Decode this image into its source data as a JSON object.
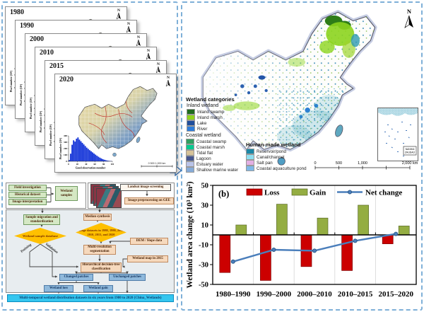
{
  "stacked_maps": {
    "years": [
      "1980",
      "1990",
      "2000",
      "2010",
      "2015",
      "2020"
    ],
    "compass": "N",
    "scale_label": "0    500   1,000 km",
    "histogram": {
      "ylabel": "Pixel number (10⁶)",
      "xlabel": "Good observation number",
      "yticks": [
        0,
        100,
        200,
        300,
        400
      ],
      "xticks": [
        0,
        20,
        40,
        60,
        80,
        100
      ],
      "values": [
        20,
        120,
        260,
        330,
        310,
        355,
        375,
        340,
        315,
        290,
        265,
        240,
        215,
        195,
        175,
        158,
        140,
        122,
        105,
        88,
        72,
        58,
        45,
        34,
        25,
        18,
        12,
        8,
        5,
        3
      ]
    }
  },
  "flowchart": {
    "inputs": [
      "Field investigation",
      "Historical dataset",
      "Image interpretation"
    ],
    "wetland_samples": "Wetland samples",
    "landsat_screening": "Landsat image screening",
    "gee": "Image preprocessing on GEE",
    "sample_migration": "Sample migration and standardization",
    "sample_db": "Wetland sample database",
    "training": "Training",
    "validation": "Validation",
    "median_synthesis": "Median synthesis",
    "image_datasets": "Image datasets in 1980, 1990, 2000, 2010, 2015, and 2020",
    "dem_slope": "DEM / Slope data",
    "segmentation": "Multi-resolution segmentation",
    "wetland_map_2015": "Wetland map in 2015",
    "classification": "Hierarchical decision-tree classification",
    "changed": "Changed patches",
    "unchanged": "Unchanged patches",
    "loss": "Wetland loss",
    "gain": "Wetland gain",
    "banner": "Multi-temporal wetland distribution datasets in six years from 1980 to 2020 (China_Wetlands)"
  },
  "map_panel": {
    "legend_title": "Wetland categories",
    "groups": [
      {
        "title": "Inland wetland",
        "items": [
          {
            "label": "Inland swamp",
            "color": "#1e6b1e"
          },
          {
            "label": "Inland marsh",
            "color": "#8fd41c"
          },
          {
            "label": "Lake",
            "color": "#1f4e9c"
          },
          {
            "label": "River",
            "color": "#2e7ddb"
          }
        ]
      },
      {
        "title": "Coastal wetland",
        "items": [
          {
            "label": "Coastal swamp",
            "color": "#2f9e60"
          },
          {
            "label": "Coastal marsh",
            "color": "#06c98f"
          },
          {
            "label": "Tidal flat",
            "color": "#d6c298"
          },
          {
            "label": "Lagoon",
            "color": "#46568f"
          },
          {
            "label": "Estuary water",
            "color": "#b9c3e8"
          },
          {
            "label": "Shallow marine water",
            "color": "#86abd8"
          }
        ]
      },
      {
        "title": "Human-made wetland",
        "items": [
          {
            "label": "Reservoir/pond",
            "color": "#1b87a6"
          },
          {
            "label": "Canal/channel",
            "color": "#8edff0"
          },
          {
            "label": "Salt pan",
            "color": "#e3afe3"
          },
          {
            "label": "Coastal aquaculture pond",
            "color": "#7db8e8"
          }
        ]
      }
    ],
    "scale_ticks": [
      "0",
      "500",
      "1,000",
      "2,000 km"
    ],
    "compass": "N",
    "inset_label": "NANHAI ZHUDAO"
  },
  "chart_data": {
    "type": "bar",
    "panel_label": "(b)",
    "categories": [
      "1980–1990",
      "1990–2000",
      "2000–2010",
      "2010–2015",
      "2015–2020"
    ],
    "series": [
      {
        "name": "Loss",
        "type": "bar",
        "color": "#cc0000",
        "values": [
          -38,
          -46,
          -32,
          -36,
          -9
        ]
      },
      {
        "name": "Gain",
        "type": "bar",
        "color": "#94ad42",
        "values": [
          10,
          31,
          17,
          30,
          9
        ]
      },
      {
        "name": "Net change",
        "type": "line",
        "color": "#4a7ebb",
        "values": [
          -27,
          -15,
          -16,
          -6,
          1
        ]
      }
    ],
    "ylabel": "Wetland area change (10³ km²)",
    "ylim": [
      -50,
      50
    ],
    "yticks": [
      50,
      30,
      10,
      -10,
      -30,
      -50
    ],
    "grid": "vertical-category-separators",
    "legend_position": "top-inside"
  }
}
